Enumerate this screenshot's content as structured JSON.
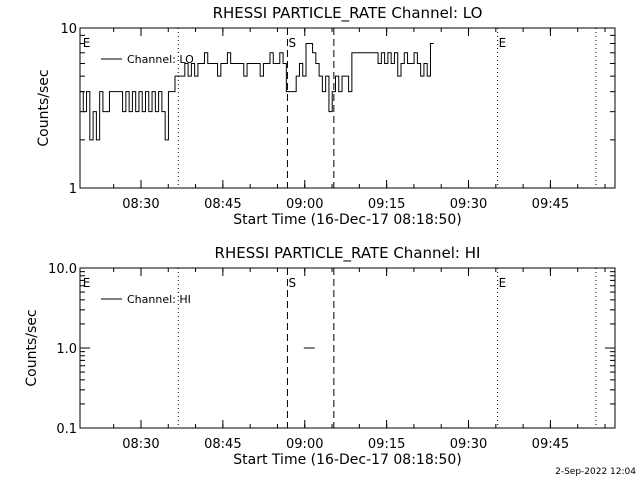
{
  "footer": {
    "timestamp": "2-Sep-2022 12:04"
  },
  "chart_data": [
    {
      "type": "line",
      "title": "RHESSI PARTICLE_RATE Channel: LO",
      "xlabel": "Start Time (16-Dec-17 08:18:50)",
      "ylabel": "Counts/sec",
      "x_unit": "minutes since 08:18:50",
      "xlim": [
        0,
        98
      ],
      "ylim": [
        1,
        10
      ],
      "y_scale": "log",
      "x_ticks": [
        {
          "v": 11.17,
          "label": "08:30"
        },
        {
          "v": 26.17,
          "label": "08:45"
        },
        {
          "v": 41.17,
          "label": "09:00"
        },
        {
          "v": 56.17,
          "label": "09:15"
        },
        {
          "v": 71.17,
          "label": "09:30"
        },
        {
          "v": 86.17,
          "label": "09:45"
        }
      ],
      "y_ticks": [
        {
          "v": 1,
          "label": "1"
        },
        {
          "v": 10,
          "label": "10"
        }
      ],
      "markers": [
        {
          "v": 18.0,
          "style": "dotted",
          "label": ""
        },
        {
          "v": 38.0,
          "style": "dashed",
          "label": "S"
        },
        {
          "v": 46.5,
          "style": "dashed",
          "label": ""
        },
        {
          "v": 76.5,
          "style": "dotted",
          "label": "E"
        },
        {
          "v": 94.5,
          "style": "dotted",
          "label": ""
        },
        {
          "v": 0.5,
          "style": "none",
          "label": "E"
        }
      ],
      "legend": {
        "position": "top-left",
        "entries": [
          "Channel: LO"
        ]
      },
      "series": [
        {
          "name": "Channel: LO",
          "x": [
            0,
            0.6,
            1.2,
            1.8,
            2.4,
            3.0,
            3.6,
            4.2,
            4.8,
            5.4,
            6.0,
            6.6,
            7.2,
            7.8,
            8.4,
            9.0,
            9.6,
            10.2,
            10.8,
            11.4,
            12.0,
            12.6,
            13.2,
            13.8,
            14.4,
            15.0,
            15.6,
            16.2,
            16.8,
            17.4,
            18.0,
            18.6,
            19.2,
            19.8,
            20.4,
            21.0,
            21.6,
            22.2,
            22.8,
            23.4,
            24.0,
            24.6,
            25.2,
            25.8,
            26.4,
            27.0,
            27.6,
            28.2,
            28.8,
            29.4,
            30.0,
            30.6,
            31.2,
            31.8,
            32.4,
            33.0,
            33.6,
            34.2,
            34.8,
            35.4,
            36.0,
            36.6,
            37.2,
            37.8,
            38.4,
            39.0,
            39.6,
            40.2,
            40.8,
            41.4,
            42.0,
            42.6,
            43.2,
            43.8,
            44.4,
            45.0,
            45.6,
            46.2,
            46.8,
            47.4,
            48.0,
            48.6,
            49.2,
            49.8,
            50.4,
            51.0,
            51.6,
            52.2,
            52.8,
            53.4,
            54.0,
            54.6,
            55.2,
            55.8,
            56.4,
            57.0,
            57.6,
            58.2,
            58.8,
            59.4,
            60.0,
            60.6,
            61.2,
            61.8,
            62.4,
            63.0,
            63.6,
            64.2
          ],
          "values": [
            4,
            3,
            4,
            2,
            3,
            2,
            4,
            3,
            3,
            4,
            4,
            4,
            4,
            3,
            4,
            3,
            4,
            3,
            4,
            3,
            4,
            3,
            4,
            3,
            4,
            3,
            2,
            4,
            4,
            5,
            5,
            5,
            6,
            5,
            6,
            5,
            6,
            6,
            7,
            6,
            6,
            6,
            5,
            6,
            6,
            7,
            6,
            6,
            6,
            6,
            5,
            6,
            6,
            6,
            6,
            5,
            6,
            6,
            7,
            6,
            6,
            7,
            6,
            4,
            4,
            4,
            5,
            6,
            5,
            8,
            8,
            7,
            6,
            5,
            4,
            5,
            3,
            4,
            5,
            4,
            5,
            5,
            4,
            7,
            7,
            7,
            7,
            7,
            7,
            7,
            7,
            6,
            7,
            6,
            7,
            6,
            7,
            5,
            6,
            7,
            6,
            6,
            7,
            6,
            5,
            6,
            5,
            8
          ]
        }
      ]
    },
    {
      "type": "line",
      "title": "RHESSI PARTICLE_RATE Channel: HI",
      "xlabel": "Start Time (16-Dec-17 08:18:50)",
      "ylabel": "Counts/sec",
      "x_unit": "minutes since 08:18:50",
      "xlim": [
        0,
        98
      ],
      "ylim": [
        0.1,
        10
      ],
      "y_scale": "log",
      "x_ticks": [
        {
          "v": 11.17,
          "label": "08:30"
        },
        {
          "v": 26.17,
          "label": "08:45"
        },
        {
          "v": 41.17,
          "label": "09:00"
        },
        {
          "v": 56.17,
          "label": "09:15"
        },
        {
          "v": 71.17,
          "label": "09:30"
        },
        {
          "v": 86.17,
          "label": "09:45"
        }
      ],
      "y_ticks": [
        {
          "v": 0.1,
          "label": "0.1"
        },
        {
          "v": 1,
          "label": "1.0"
        },
        {
          "v": 10,
          "label": "10.0"
        }
      ],
      "markers": [
        {
          "v": 18.0,
          "style": "dotted",
          "label": ""
        },
        {
          "v": 38.0,
          "style": "dashed",
          "label": "S"
        },
        {
          "v": 46.5,
          "style": "dashed",
          "label": ""
        },
        {
          "v": 76.5,
          "style": "dotted",
          "label": "E"
        },
        {
          "v": 94.5,
          "style": "dotted",
          "label": ""
        },
        {
          "v": 0.5,
          "style": "none",
          "label": "E"
        }
      ],
      "legend": {
        "position": "top-left",
        "entries": [
          "Channel: HI"
        ]
      },
      "series": [
        {
          "name": "Channel: HI",
          "x": [
            41.0,
            43.0
          ],
          "values": [
            1,
            1
          ]
        }
      ]
    }
  ]
}
